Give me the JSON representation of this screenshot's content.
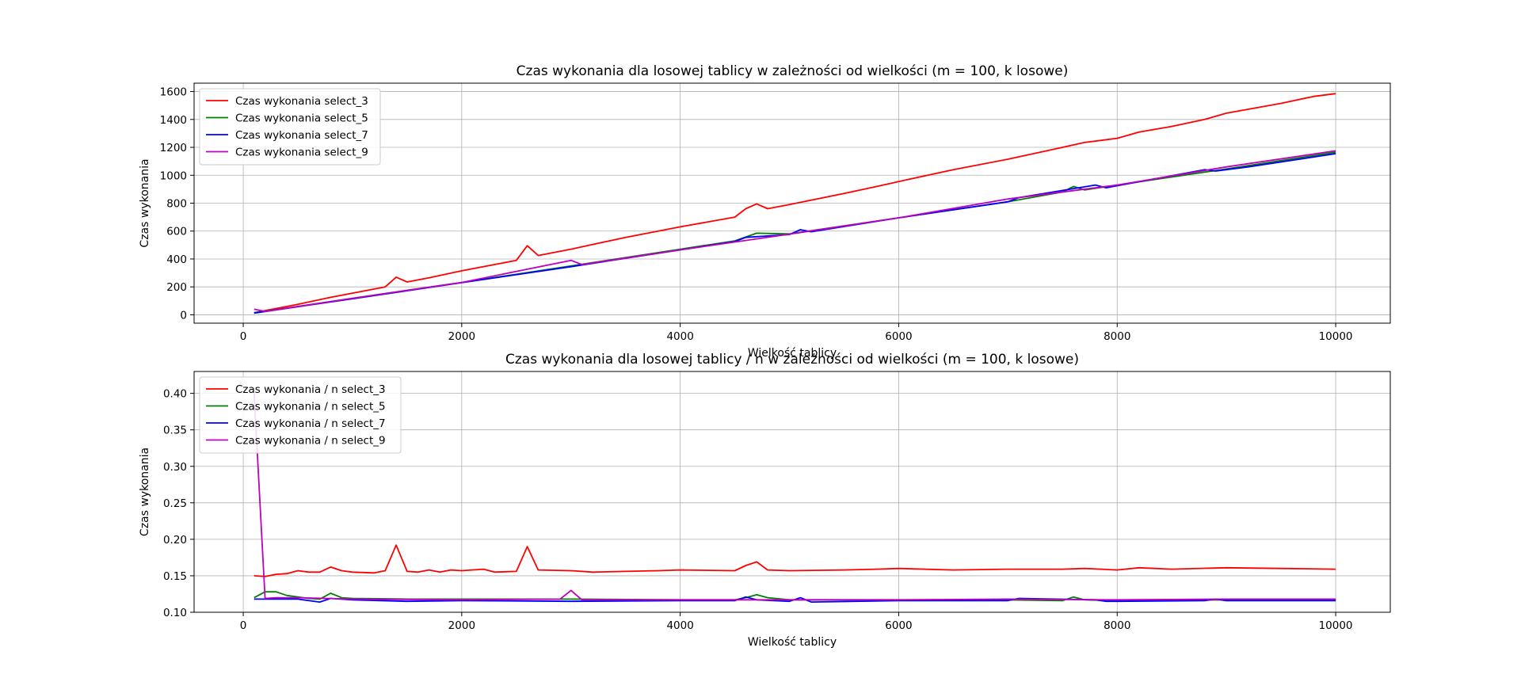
{
  "chart_data": [
    {
      "type": "line",
      "title": "Czas wykonania dla losowej tablicy w zależności od wielkości (m = 100, k losowe)",
      "xlabel": "Wielkość tablicy",
      "ylabel": "Czas wykonania",
      "xlim": [
        -450,
        10500
      ],
      "ylim": [
        -60,
        1660
      ],
      "xticks": [
        0,
        2000,
        4000,
        6000,
        8000,
        10000
      ],
      "yticks": [
        0,
        200,
        400,
        600,
        800,
        1000,
        1200,
        1400,
        1600
      ],
      "grid": true,
      "legend_position": "top-left",
      "series": [
        {
          "name": "Czas wykonania select_3",
          "color": "#ff0000",
          "x": [
            100,
            200,
            300,
            500,
            800,
            1000,
            1300,
            1400,
            1500,
            1700,
            2000,
            2300,
            2500,
            2600,
            2700,
            3000,
            3500,
            4000,
            4500,
            4600,
            4700,
            4800,
            5000,
            5500,
            5800,
            6000,
            6500,
            7000,
            7500,
            7700,
            8000,
            8200,
            8500,
            8800,
            9000,
            9500,
            9800,
            10000
          ],
          "y": [
            15,
            30,
            45,
            75,
            125,
            155,
            200,
            270,
            235,
            265,
            315,
            360,
            390,
            495,
            425,
            470,
            555,
            630,
            700,
            760,
            795,
            760,
            790,
            870,
            920,
            955,
            1040,
            1115,
            1200,
            1235,
            1265,
            1310,
            1350,
            1400,
            1445,
            1515,
            1565,
            1585
          ]
        },
        {
          "name": "Czas wykonania select_5",
          "color": "#008000",
          "x": [
            100,
            500,
            1000,
            2000,
            3000,
            4000,
            4500,
            4700,
            5000,
            6000,
            7000,
            7500,
            7600,
            7700,
            8000,
            9000,
            10000
          ],
          "y": [
            15,
            60,
            118,
            232,
            350,
            470,
            530,
            585,
            580,
            695,
            810,
            880,
            920,
            895,
            930,
            1045,
            1165
          ]
        },
        {
          "name": "Czas wykonania select_7",
          "color": "#0000ff",
          "x": [
            100,
            500,
            1000,
            2000,
            3000,
            4000,
            4500,
            4600,
            5000,
            5100,
            5200,
            6000,
            7000,
            7100,
            7800,
            7900,
            8000,
            8800,
            8900,
            9000,
            9200,
            10000
          ],
          "y": [
            12,
            58,
            115,
            230,
            345,
            465,
            525,
            555,
            575,
            610,
            595,
            695,
            810,
            840,
            930,
            910,
            925,
            1040,
            1030,
            1040,
            1060,
            1155
          ]
        },
        {
          "name": "Czas wykonania select_9",
          "color": "#bf00bf",
          "x": [
            100,
            200,
            500,
            1000,
            2000,
            3000,
            3100,
            4000,
            5000,
            6000,
            7000,
            8000,
            9000,
            10000
          ],
          "y": [
            40,
            24,
            60,
            118,
            232,
            390,
            360,
            465,
            578,
            695,
            830,
            930,
            1060,
            1175
          ]
        }
      ]
    },
    {
      "type": "line",
      "title": "Czas wykonania dla losowej tablicy / n w zależności od wielkości (m = 100, k losowe)",
      "xlabel": "Wielkość tablicy",
      "ylabel": "Czas wykonania",
      "xlim": [
        -450,
        10500
      ],
      "ylim": [
        0.1,
        0.43
      ],
      "xticks": [
        0,
        2000,
        4000,
        6000,
        8000,
        10000
      ],
      "yticks": [
        0.1,
        0.15,
        0.2,
        0.25,
        0.3,
        0.35,
        0.4
      ],
      "ytick_labels": [
        "0.10",
        "0.15",
        "0.20",
        "0.25",
        "0.30",
        "0.35",
        "0.40"
      ],
      "grid": true,
      "legend_position": "top-left",
      "series": [
        {
          "name": "Czas wykonania / n select_3",
          "color": "#ff0000",
          "x": [
            100,
            200,
            300,
            400,
            500,
            600,
            700,
            800,
            900,
            1000,
            1200,
            1300,
            1400,
            1500,
            1600,
            1700,
            1800,
            1900,
            2000,
            2200,
            2300,
            2500,
            2600,
            2700,
            3000,
            3200,
            3500,
            3800,
            4000,
            4500,
            4600,
            4700,
            4800,
            5000,
            5500,
            5800,
            6000,
            6500,
            7000,
            7500,
            7700,
            8000,
            8200,
            8500,
            9000,
            9500,
            10000
          ],
          "y": [
            0.15,
            0.149,
            0.152,
            0.153,
            0.157,
            0.155,
            0.155,
            0.162,
            0.157,
            0.155,
            0.154,
            0.157,
            0.192,
            0.156,
            0.155,
            0.158,
            0.155,
            0.158,
            0.157,
            0.159,
            0.155,
            0.156,
            0.19,
            0.158,
            0.157,
            0.155,
            0.156,
            0.157,
            0.158,
            0.157,
            0.164,
            0.169,
            0.158,
            0.157,
            0.158,
            0.159,
            0.16,
            0.158,
            0.159,
            0.159,
            0.16,
            0.158,
            0.161,
            0.159,
            0.161,
            0.16,
            0.159
          ]
        },
        {
          "name": "Czas wykonania / n select_5",
          "color": "#008000",
          "x": [
            100,
            200,
            300,
            400,
            500,
            600,
            700,
            800,
            900,
            1000,
            1500,
            2000,
            3000,
            4000,
            4500,
            4600,
            4700,
            4800,
            5000,
            6000,
            7000,
            7500,
            7600,
            7700,
            8000,
            9000,
            10000
          ],
          "y": [
            0.12,
            0.128,
            0.128,
            0.123,
            0.121,
            0.119,
            0.118,
            0.126,
            0.12,
            0.119,
            0.118,
            0.118,
            0.118,
            0.117,
            0.117,
            0.12,
            0.124,
            0.12,
            0.117,
            0.117,
            0.117,
            0.116,
            0.121,
            0.117,
            0.116,
            0.117,
            0.117
          ]
        },
        {
          "name": "Czas wykonania / n select_7",
          "color": "#0000ff",
          "x": [
            100,
            200,
            300,
            500,
            700,
            800,
            1000,
            1500,
            2000,
            3000,
            4000,
            4500,
            4600,
            4700,
            5000,
            5100,
            5200,
            6000,
            7000,
            7100,
            7800,
            7900,
            8000,
            8800,
            8900,
            9000,
            10000
          ],
          "y": [
            0.118,
            0.118,
            0.118,
            0.118,
            0.114,
            0.119,
            0.117,
            0.115,
            0.116,
            0.115,
            0.116,
            0.116,
            0.121,
            0.117,
            0.115,
            0.12,
            0.114,
            0.116,
            0.116,
            0.119,
            0.117,
            0.115,
            0.115,
            0.116,
            0.118,
            0.116,
            0.116
          ]
        },
        {
          "name": "Czas wykonania / n select_9",
          "color": "#bf00bf",
          "x": [
            100,
            200,
            300,
            500,
            1000,
            2000,
            2900,
            3000,
            3100,
            4000,
            5000,
            6000,
            7000,
            8000,
            9000,
            10000
          ],
          "y": [
            0.4,
            0.119,
            0.12,
            0.12,
            0.118,
            0.117,
            0.118,
            0.13,
            0.117,
            0.117,
            0.117,
            0.117,
            0.118,
            0.117,
            0.118,
            0.118
          ]
        }
      ]
    }
  ]
}
